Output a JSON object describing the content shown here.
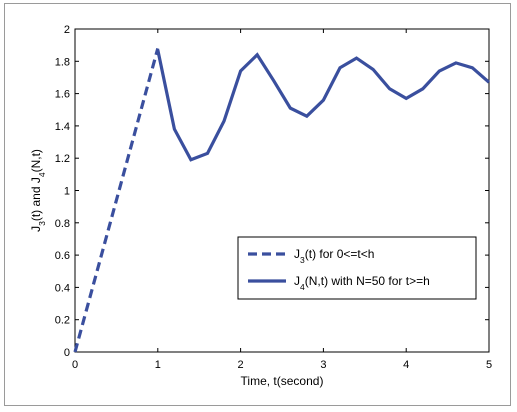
{
  "chart_data": {
    "type": "line",
    "xlabel": "Time, t(second)",
    "ylabel": {
      "parts": [
        {
          "text": "J",
          "sub": false
        },
        {
          "text": "3",
          "sub": true
        },
        {
          "text": "(t) and J",
          "sub": false
        },
        {
          "text": "4",
          "sub": true
        },
        {
          "text": "(N,t)",
          "sub": false
        }
      ]
    },
    "xlim": [
      0,
      5
    ],
    "ylim": [
      0,
      2
    ],
    "xticks": [
      0,
      1,
      2,
      3,
      4,
      5
    ],
    "xtick_labels": [
      "0",
      "1",
      "2",
      "3",
      "4",
      "5"
    ],
    "yticks": [
      0,
      0.2,
      0.4,
      0.6,
      0.8,
      1,
      1.2,
      1.4,
      1.6,
      1.8,
      2
    ],
    "ytick_labels": [
      "0",
      "0.2",
      "0.4",
      "0.6",
      "0.8",
      "1",
      "1.2",
      "1.4",
      "1.6",
      "1.8",
      "2"
    ],
    "grid": false,
    "legend_position": "lower-right",
    "series": [
      {
        "id": "j3",
        "legend_parts": [
          {
            "text": "J",
            "sub": false
          },
          {
            "text": "3",
            "sub": true
          },
          {
            "text": "(t) for 0<=t<h",
            "sub": false
          }
        ],
        "style": "dashed",
        "color": "#3a4f9e",
        "x": [
          0,
          1
        ],
        "y": [
          0,
          1.88
        ]
      },
      {
        "id": "j4",
        "legend_parts": [
          {
            "text": "J",
            "sub": false
          },
          {
            "text": "4",
            "sub": true
          },
          {
            "text": "(N,t) with N=50 for t>=h",
            "sub": false
          }
        ],
        "style": "solid",
        "color": "#3a4f9e",
        "x": [
          1,
          1.2,
          1.4,
          1.6,
          1.8,
          2,
          2.2,
          2.4,
          2.6,
          2.8,
          3,
          3.2,
          3.4,
          3.6,
          3.8,
          4,
          4.2,
          4.4,
          4.6,
          4.8,
          5
        ],
        "y": [
          1.87,
          1.38,
          1.19,
          1.23,
          1.43,
          1.74,
          1.84,
          1.68,
          1.51,
          1.46,
          1.56,
          1.76,
          1.82,
          1.75,
          1.63,
          1.57,
          1.63,
          1.74,
          1.79,
          1.76,
          1.67
        ]
      }
    ]
  }
}
